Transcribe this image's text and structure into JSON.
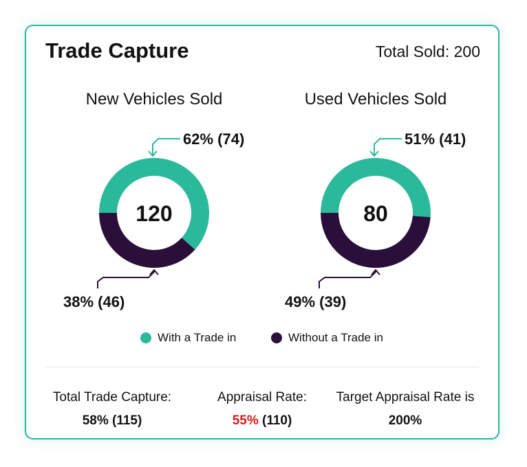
{
  "card": {
    "title": "Trade Capture",
    "total_sold": "Total Sold: 200"
  },
  "charts": [
    {
      "title": "New Vehicles Sold",
      "center_value": "120",
      "with_label": "62% (74)",
      "without_label": "38% (46)"
    },
    {
      "title": "Used Vehicles Sold",
      "center_value": "80",
      "with_label": "51% (41)",
      "without_label": "49% (39)"
    }
  ],
  "legend": {
    "with": "With a Trade in",
    "without": "Without a Trade in"
  },
  "colors": {
    "with": "#2bb99b",
    "without": "#2b0f3b",
    "accent_border": "#2ab89a",
    "highlight": "#d0201c"
  },
  "stats": {
    "total_trade_capture": {
      "label": "Total Trade Capture:",
      "value": "58% (115)"
    },
    "appraisal_rate": {
      "label": "Appraisal Rate:",
      "value_highlight": "55%",
      "value_rest": " (110)"
    },
    "target_appraisal": {
      "label": "Target Appraisal Rate is",
      "value": "200%"
    }
  },
  "chart_data": [
    {
      "type": "pie",
      "title": "New Vehicles Sold",
      "total": 120,
      "categories": [
        "With a Trade in",
        "Without a Trade in"
      ],
      "values": [
        74,
        46
      ],
      "percentages": [
        62,
        38
      ]
    },
    {
      "type": "pie",
      "title": "Used Vehicles Sold",
      "total": 80,
      "categories": [
        "With a Trade in",
        "Without a Trade in"
      ],
      "values": [
        41,
        39
      ],
      "percentages": [
        51,
        49
      ]
    }
  ]
}
